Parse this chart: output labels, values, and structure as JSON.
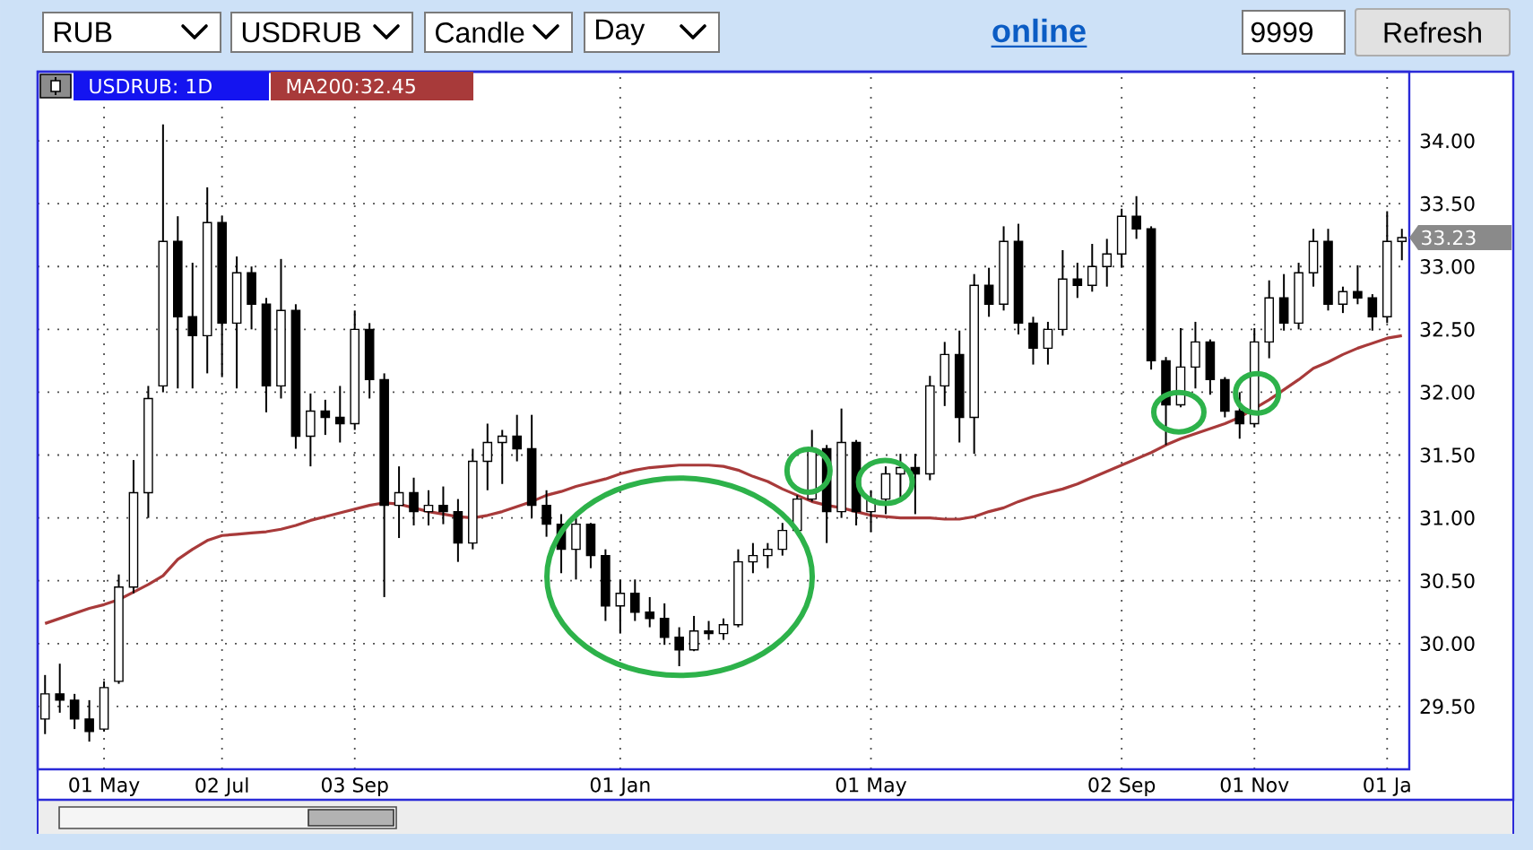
{
  "chart_data": {
    "type": "candlestick",
    "categories": [
      null,
      null,
      null,
      null,
      "01 May",
      null,
      null,
      null,
      null,
      null,
      null,
      null,
      "02 Jul",
      null,
      null,
      null,
      null,
      null,
      null,
      null,
      null,
      "03 Sep",
      null,
      null,
      null,
      null,
      null,
      null,
      null,
      null,
      null,
      null,
      null,
      null,
      null,
      null,
      null,
      null,
      null,
      "01 Jan",
      null,
      null,
      null,
      null,
      null,
      null,
      null,
      null,
      null,
      null,
      null,
      null,
      null,
      null,
      null,
      null,
      "01 May",
      null,
      null,
      null,
      null,
      null,
      null,
      null,
      null,
      null,
      null,
      null,
      null,
      null,
      null,
      null,
      null,
      "02 Sep",
      null,
      null,
      null,
      null,
      null,
      null,
      null,
      null,
      "01 Nov",
      null,
      null,
      null,
      null,
      null,
      null,
      null,
      null,
      "01 Ja",
      null
    ],
    "ylim": [
      29,
      34.55
    ],
    "yticks": [
      {
        "value": 29.5,
        "label": "29.50"
      },
      {
        "value": 30,
        "label": "30.00"
      },
      {
        "value": 30.5,
        "label": "30.50"
      },
      {
        "value": 31,
        "label": "31.00"
      },
      {
        "value": 31.5,
        "label": "31.50"
      },
      {
        "value": 32,
        "label": "32.00"
      },
      {
        "value": 32.5,
        "label": "32.50"
      },
      {
        "value": 33,
        "label": "33.00"
      },
      {
        "value": 33.5,
        "label": "33.50"
      },
      {
        "value": 34,
        "label": "34.00"
      }
    ],
    "grid": true,
    "legend": "top left",
    "series": [
      {
        "name": "USDRUB: 1D",
        "color": "#000000",
        "ohlc": [
          [
            29.4,
            29.75,
            29.28,
            29.6
          ],
          [
            29.6,
            29.84,
            29.45,
            29.55
          ],
          [
            29.55,
            29.6,
            29.32,
            29.4
          ],
          [
            29.4,
            29.55,
            29.22,
            29.3
          ],
          [
            29.32,
            29.7,
            29.3,
            29.65
          ],
          [
            29.7,
            30.55,
            29.68,
            30.45
          ],
          [
            30.45,
            31.46,
            30.4,
            31.2
          ],
          [
            31.2,
            32.05,
            31.0,
            31.95
          ],
          [
            32.05,
            34.13,
            32.0,
            33.2
          ],
          [
            33.2,
            33.4,
            32.03,
            32.6
          ],
          [
            32.6,
            33.03,
            32.03,
            32.45
          ],
          [
            32.45,
            33.63,
            32.15,
            33.35
          ],
          [
            33.35,
            33.4,
            32.12,
            32.55
          ],
          [
            32.55,
            33.08,
            32.03,
            32.95
          ],
          [
            32.95,
            33.0,
            32.5,
            32.7
          ],
          [
            32.7,
            32.75,
            31.84,
            32.05
          ],
          [
            32.05,
            33.06,
            31.95,
            32.65
          ],
          [
            32.65,
            32.7,
            31.55,
            31.65
          ],
          [
            31.65,
            31.99,
            31.41,
            31.85
          ],
          [
            31.85,
            31.94,
            31.66,
            31.8
          ],
          [
            31.8,
            32.05,
            31.6,
            31.75
          ],
          [
            31.75,
            32.65,
            31.7,
            32.5
          ],
          [
            32.5,
            32.55,
            31.95,
            32.1
          ],
          [
            32.1,
            32.15,
            30.37,
            31.1
          ],
          [
            31.1,
            31.41,
            30.84,
            31.2
          ],
          [
            31.2,
            31.32,
            30.94,
            31.05
          ],
          [
            31.05,
            31.22,
            30.94,
            31.1
          ],
          [
            31.1,
            31.25,
            30.95,
            31.05
          ],
          [
            31.05,
            31.15,
            30.65,
            30.8
          ],
          [
            30.8,
            31.55,
            30.75,
            31.45
          ],
          [
            31.45,
            31.75,
            31.22,
            31.6
          ],
          [
            31.6,
            31.7,
            31.27,
            31.65
          ],
          [
            31.65,
            31.82,
            31.45,
            31.55
          ],
          [
            31.55,
            31.82,
            31.0,
            31.1
          ],
          [
            31.1,
            31.22,
            30.85,
            30.95
          ],
          [
            30.95,
            31.03,
            30.56,
            30.75
          ],
          [
            30.75,
            31.0,
            30.51,
            30.95
          ],
          [
            30.95,
            30.96,
            30.6,
            30.7
          ],
          [
            30.7,
            30.75,
            30.18,
            30.3
          ],
          [
            30.3,
            30.51,
            30.08,
            30.4
          ],
          [
            30.4,
            30.51,
            30.18,
            30.25
          ],
          [
            30.25,
            30.37,
            30.13,
            30.2
          ],
          [
            30.2,
            30.32,
            29.99,
            30.05
          ],
          [
            30.05,
            30.13,
            29.82,
            29.95
          ],
          [
            29.95,
            30.22,
            29.94,
            30.1
          ],
          [
            30.1,
            30.18,
            30.03,
            30.08
          ],
          [
            30.08,
            30.2,
            30.03,
            30.15
          ],
          [
            30.15,
            30.75,
            30.13,
            30.65
          ],
          [
            30.65,
            30.8,
            30.56,
            30.7
          ],
          [
            30.7,
            30.8,
            30.6,
            30.75
          ],
          [
            30.75,
            30.96,
            30.7,
            30.9
          ],
          [
            30.9,
            31.18,
            30.88,
            31.15
          ],
          [
            31.15,
            31.7,
            31.13,
            31.55
          ],
          [
            31.55,
            31.58,
            30.8,
            31.05
          ],
          [
            31.05,
            31.87,
            31.0,
            31.6
          ],
          [
            31.6,
            31.62,
            30.94,
            31.05
          ],
          [
            31.05,
            31.22,
            30.89,
            31.15
          ],
          [
            31.15,
            31.41,
            31.03,
            31.35
          ],
          [
            31.35,
            31.51,
            31.13,
            31.4
          ],
          [
            31.4,
            31.51,
            31.03,
            31.35
          ],
          [
            31.35,
            32.13,
            31.3,
            32.05
          ],
          [
            32.05,
            32.4,
            31.89,
            32.3
          ],
          [
            32.3,
            32.49,
            31.6,
            31.8
          ],
          [
            31.8,
            32.94,
            31.51,
            32.85
          ],
          [
            32.85,
            32.99,
            32.6,
            32.7
          ],
          [
            32.7,
            33.32,
            32.65,
            33.2
          ],
          [
            33.2,
            33.34,
            32.46,
            32.55
          ],
          [
            32.55,
            32.6,
            32.22,
            32.35
          ],
          [
            32.35,
            32.56,
            32.22,
            32.5
          ],
          [
            32.5,
            33.13,
            32.45,
            32.9
          ],
          [
            32.9,
            33.03,
            32.75,
            32.85
          ],
          [
            32.85,
            33.18,
            32.8,
            33.0
          ],
          [
            33.0,
            33.22,
            32.84,
            33.1
          ],
          [
            33.1,
            33.46,
            32.99,
            33.4
          ],
          [
            33.4,
            33.56,
            33.22,
            33.3
          ],
          [
            33.3,
            33.32,
            32.18,
            32.25
          ],
          [
            32.25,
            32.28,
            31.58,
            31.9
          ],
          [
            31.9,
            32.51,
            31.88,
            32.2
          ],
          [
            32.2,
            32.56,
            32.03,
            32.4
          ],
          [
            32.4,
            32.42,
            31.98,
            32.1
          ],
          [
            32.1,
            32.12,
            31.8,
            31.85
          ],
          [
            31.85,
            32.0,
            31.63,
            31.75
          ],
          [
            31.75,
            32.51,
            31.72,
            32.4
          ],
          [
            32.4,
            32.89,
            32.27,
            32.75
          ],
          [
            32.75,
            32.94,
            32.49,
            32.55
          ],
          [
            32.55,
            33.03,
            32.5,
            32.95
          ],
          [
            32.95,
            33.3,
            32.84,
            33.2
          ],
          [
            33.2,
            33.3,
            32.65,
            32.7
          ],
          [
            32.7,
            32.84,
            32.63,
            32.8
          ],
          [
            32.8,
            33.01,
            32.7,
            32.75
          ],
          [
            32.75,
            32.78,
            32.49,
            32.6
          ],
          [
            32.6,
            33.44,
            32.55,
            33.2
          ],
          [
            33.2,
            33.3,
            33.05,
            33.23
          ]
        ]
      },
      {
        "type": "line",
        "name": "MA200:32.45",
        "color": "#a83a3a",
        "values": [
          30.16,
          30.2,
          30.24,
          30.28,
          30.31,
          30.35,
          30.41,
          30.47,
          30.54,
          30.67,
          30.75,
          30.82,
          30.86,
          30.87,
          30.88,
          30.89,
          30.91,
          30.94,
          30.98,
          31.01,
          31.04,
          31.07,
          31.1,
          31.12,
          31.11,
          31.08,
          31.05,
          31.03,
          31.01,
          31.0,
          31.02,
          31.05,
          31.09,
          31.13,
          31.18,
          31.21,
          31.25,
          31.28,
          31.31,
          31.35,
          31.38,
          31.4,
          31.41,
          31.42,
          31.42,
          31.42,
          31.41,
          31.38,
          31.33,
          31.29,
          31.23,
          31.18,
          31.13,
          31.1,
          31.08,
          31.05,
          31.02,
          31.01,
          31.0,
          31.0,
          31.0,
          30.99,
          30.99,
          31.01,
          31.05,
          31.08,
          31.13,
          31.17,
          31.2,
          31.23,
          31.27,
          31.32,
          31.37,
          31.42,
          31.47,
          31.52,
          31.58,
          31.63,
          31.67,
          31.71,
          31.75,
          31.8,
          31.87,
          31.94,
          32.02,
          32.1,
          32.19,
          32.24,
          32.3,
          32.35,
          32.39,
          32.43,
          32.45
        ]
      }
    ],
    "annotations": [
      "RUB",
      "USDRUB",
      "Candle",
      "Day",
      "online",
      "9999",
      "Refresh",
      "33.23"
    ]
  }
}
